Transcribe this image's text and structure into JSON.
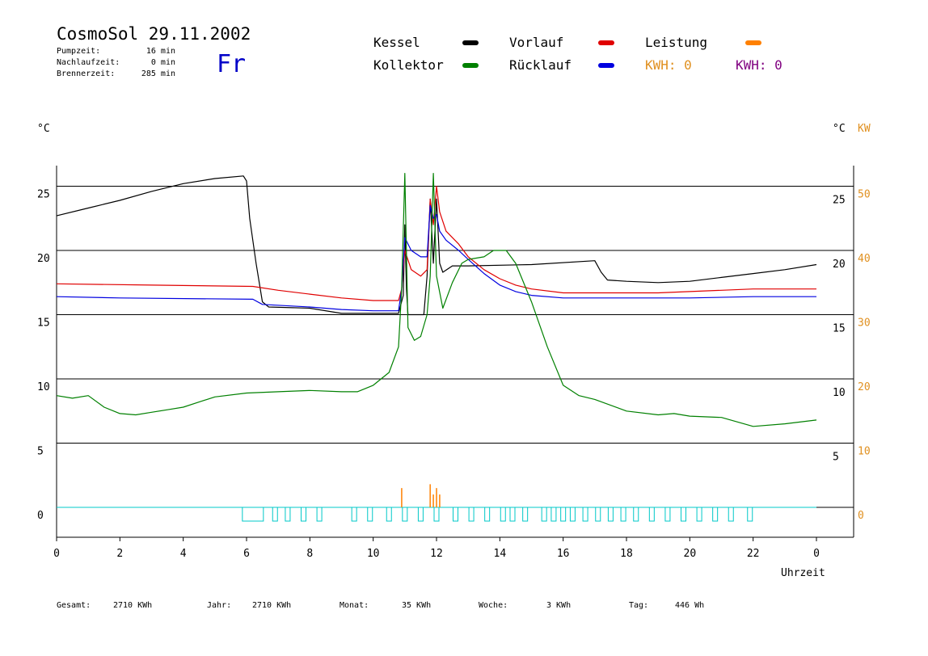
{
  "header": {
    "title": "CosmoSol 29.11.2002",
    "day": "Fr",
    "pump_label": "Pumpzeit:",
    "pump_value": "16 min",
    "run_label": "Nachlaufzeit:",
    "run_value": "0 min",
    "burner_label": "Brennerzeit:",
    "burner_value": "285 min"
  },
  "legend": {
    "kessel": "Kessel",
    "kollektor": "Kollektor",
    "vorlauf": "Vorlauf",
    "ruecklauf": "Rücklauf",
    "leistung": "Leistung",
    "kwh1": "KWH: 0",
    "kwh2": "KWH: 0"
  },
  "colors": {
    "kessel": "#000000",
    "kollektor": "#008000",
    "vorlauf": "#e00000",
    "ruecklauf": "#0000e0",
    "leistung": "#ff8000",
    "kwh2": "#800080",
    "pump": "#00c8c8"
  },
  "axes": {
    "left_unit": "°C",
    "right_unit": "°C",
    "right_unit2": "KW",
    "xlabel": "Uhrzeit"
  },
  "footer": {
    "gesamt_label": "Gesamt:",
    "gesamt_value": "2710 KWh",
    "jahr_label": "Jahr:",
    "jahr_value": "2710 KWh",
    "monat_label": "Monat:",
    "monat_value": "35 KWh",
    "woche_label": "Woche:",
    "woche_value": "3 KWh",
    "tag_label": "Tag:",
    "tag_value": "446 Wh"
  },
  "chart_data": {
    "type": "line",
    "xlabel": "Uhrzeit",
    "ylabel": "°C",
    "xlim": [
      0,
      24
    ],
    "ylim": [
      -2,
      27
    ],
    "grid": true,
    "x_ticks": [
      "0",
      "2",
      "4",
      "6",
      "8",
      "10",
      "12",
      "14",
      "16",
      "18",
      "20",
      "22",
      "0"
    ],
    "y_ticks_left": [
      0,
      5,
      10,
      15,
      20,
      25
    ],
    "y_ticks_right_temp": [
      5,
      10,
      15,
      20,
      25
    ],
    "y_ticks_right_kw": [
      0,
      10,
      20,
      30,
      40,
      50
    ],
    "series": [
      {
        "name": "Kessel",
        "color": "#000000",
        "points": [
          [
            0,
            22.7
          ],
          [
            1,
            23.3
          ],
          [
            2,
            23.9
          ],
          [
            3,
            24.6
          ],
          [
            4,
            25.2
          ],
          [
            5,
            25.6
          ],
          [
            5.9,
            25.8
          ],
          [
            6.0,
            25.4
          ],
          [
            6.1,
            22.5
          ],
          [
            6.3,
            19.0
          ],
          [
            6.5,
            16.0
          ],
          [
            6.7,
            15.6
          ],
          [
            8.0,
            15.5
          ],
          [
            9.0,
            15.1
          ],
          [
            10.0,
            15.1
          ],
          [
            10.8,
            15.1
          ],
          [
            10.95,
            16.5
          ],
          [
            11.0,
            22.0
          ],
          [
            11.05,
            17.0
          ],
          [
            11.1,
            15.0
          ],
          [
            11.6,
            15.0
          ],
          [
            11.7,
            18.0
          ],
          [
            11.8,
            24.0
          ],
          [
            11.9,
            19.0
          ],
          [
            12.0,
            24.0
          ],
          [
            12.1,
            19.0
          ],
          [
            12.2,
            18.3
          ],
          [
            12.5,
            18.8
          ],
          [
            13.0,
            18.8
          ],
          [
            15.0,
            18.9
          ],
          [
            17.0,
            19.2
          ],
          [
            17.2,
            18.3
          ],
          [
            17.4,
            17.7
          ],
          [
            18.0,
            17.6
          ],
          [
            19.0,
            17.5
          ],
          [
            20.0,
            17.6
          ],
          [
            21.0,
            17.9
          ],
          [
            22.0,
            18.2
          ],
          [
            23.0,
            18.5
          ],
          [
            24.0,
            18.9
          ]
        ]
      },
      {
        "name": "Vorlauf",
        "color": "#e00000",
        "points": [
          [
            0,
            17.4
          ],
          [
            3.0,
            17.3
          ],
          [
            6.2,
            17.2
          ],
          [
            7.0,
            16.9
          ],
          [
            8.0,
            16.6
          ],
          [
            9.0,
            16.3
          ],
          [
            10.0,
            16.1
          ],
          [
            10.8,
            16.1
          ],
          [
            10.9,
            17.0
          ],
          [
            11.0,
            20.0
          ],
          [
            11.2,
            18.5
          ],
          [
            11.5,
            18.0
          ],
          [
            11.7,
            18.5
          ],
          [
            11.8,
            24.0
          ],
          [
            11.9,
            22.0
          ],
          [
            12.0,
            25.0
          ],
          [
            12.1,
            23.0
          ],
          [
            12.3,
            21.5
          ],
          [
            12.7,
            20.5
          ],
          [
            13.0,
            19.5
          ],
          [
            13.5,
            18.5
          ],
          [
            14.0,
            17.8
          ],
          [
            14.5,
            17.3
          ],
          [
            15.0,
            17.0
          ],
          [
            16.0,
            16.7
          ],
          [
            17.0,
            16.7
          ],
          [
            18.0,
            16.7
          ],
          [
            19.0,
            16.7
          ],
          [
            20.0,
            16.8
          ],
          [
            21.0,
            16.9
          ],
          [
            22.0,
            17.0
          ],
          [
            23.0,
            17.0
          ],
          [
            24.0,
            17.0
          ]
        ]
      },
      {
        "name": "Rücklauf",
        "color": "#0000e0",
        "points": [
          [
            0,
            16.4
          ],
          [
            2.0,
            16.3
          ],
          [
            6.2,
            16.2
          ],
          [
            6.5,
            15.8
          ],
          [
            8.0,
            15.6
          ],
          [
            9.0,
            15.4
          ],
          [
            10.0,
            15.3
          ],
          [
            10.8,
            15.3
          ],
          [
            10.9,
            17.0
          ],
          [
            11.0,
            21.0
          ],
          [
            11.2,
            20.0
          ],
          [
            11.5,
            19.5
          ],
          [
            11.7,
            19.5
          ],
          [
            11.8,
            23.5
          ],
          [
            11.9,
            22.5
          ],
          [
            12.0,
            22.8
          ],
          [
            12.1,
            21.5
          ],
          [
            12.3,
            20.8
          ],
          [
            12.7,
            20.0
          ],
          [
            13.0,
            19.3
          ],
          [
            13.5,
            18.2
          ],
          [
            14.0,
            17.3
          ],
          [
            14.5,
            16.8
          ],
          [
            15.0,
            16.5
          ],
          [
            16.0,
            16.3
          ],
          [
            18.0,
            16.3
          ],
          [
            20.0,
            16.3
          ],
          [
            22.0,
            16.4
          ],
          [
            24.0,
            16.4
          ]
        ]
      },
      {
        "name": "Kollektor",
        "color": "#008000",
        "points": [
          [
            0,
            8.7
          ],
          [
            0.5,
            8.5
          ],
          [
            1.0,
            8.7
          ],
          [
            1.5,
            7.8
          ],
          [
            2.0,
            7.3
          ],
          [
            2.5,
            7.2
          ],
          [
            3.0,
            7.4
          ],
          [
            3.5,
            7.6
          ],
          [
            4.0,
            7.8
          ],
          [
            4.5,
            8.2
          ],
          [
            5.0,
            8.6
          ],
          [
            6.0,
            8.9
          ],
          [
            7.0,
            9.0
          ],
          [
            8.0,
            9.1
          ],
          [
            9.0,
            9.0
          ],
          [
            9.5,
            9.0
          ],
          [
            10.0,
            9.5
          ],
          [
            10.5,
            10.5
          ],
          [
            10.8,
            12.5
          ],
          [
            10.9,
            17.0
          ],
          [
            11.0,
            26.0
          ],
          [
            11.1,
            14.0
          ],
          [
            11.3,
            13.0
          ],
          [
            11.5,
            13.3
          ],
          [
            11.7,
            15.0
          ],
          [
            11.8,
            18.0
          ],
          [
            11.9,
            26.0
          ],
          [
            12.0,
            18.0
          ],
          [
            12.2,
            15.5
          ],
          [
            12.5,
            17.5
          ],
          [
            12.8,
            19.0
          ],
          [
            13.0,
            19.3
          ],
          [
            13.5,
            19.5
          ],
          [
            13.8,
            20.0
          ],
          [
            14.2,
            20.0
          ],
          [
            14.5,
            19.0
          ],
          [
            15.0,
            16.0
          ],
          [
            15.5,
            12.5
          ],
          [
            16.0,
            9.5
          ],
          [
            16.5,
            8.7
          ],
          [
            17.0,
            8.4
          ],
          [
            18.0,
            7.5
          ],
          [
            19.0,
            7.2
          ],
          [
            19.5,
            7.3
          ],
          [
            20.0,
            7.1
          ],
          [
            21.0,
            7.0
          ],
          [
            22.0,
            6.3
          ],
          [
            23.0,
            6.5
          ],
          [
            24.0,
            6.8
          ]
        ]
      }
    ],
    "pump_pulses_h": [
      6.2,
      6.9,
      7.3,
      7.8,
      8.3,
      9.4,
      9.9,
      10.5,
      11.0,
      11.5,
      12.0,
      12.6,
      13.1,
      13.6,
      14.1,
      14.4,
      14.8,
      15.4,
      15.7,
      16.0,
      16.3,
      16.7,
      17.1,
      17.5,
      17.9,
      18.3,
      18.8,
      19.3,
      19.8,
      20.3,
      20.8,
      21.3,
      21.9
    ],
    "leistung_spikes": [
      [
        10.9,
        1.5
      ],
      [
        11.8,
        1.8
      ],
      [
        11.9,
        1.0
      ],
      [
        12.0,
        1.5
      ],
      [
        12.1,
        1.0
      ]
    ]
  }
}
